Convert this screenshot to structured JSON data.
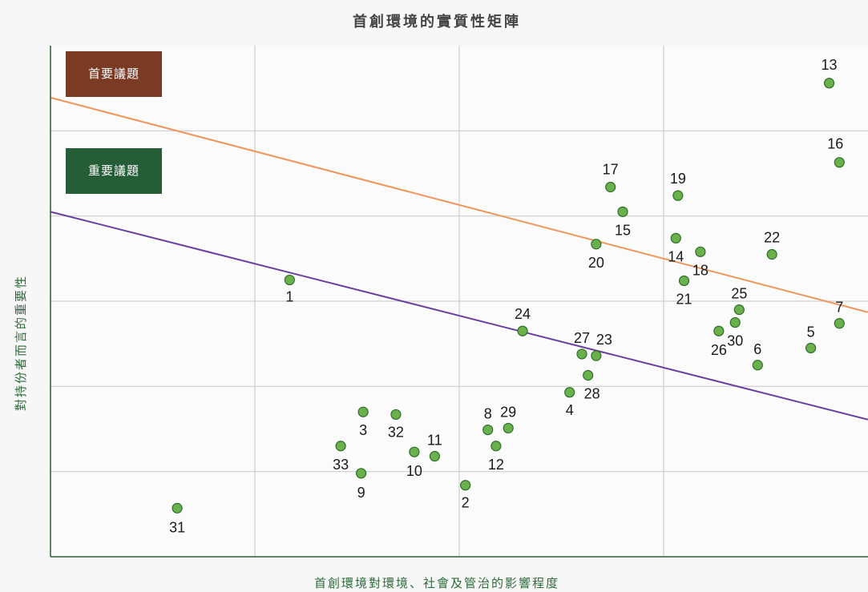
{
  "chart_data": {
    "type": "scatter",
    "title": "首創環境的實質性矩陣",
    "xlabel": "首創環境對環境、社會及管治的影響程度",
    "ylabel": "對持份者而言的重要性",
    "xlim": [
      0,
      4
    ],
    "ylim": [
      0,
      6
    ],
    "grid": true,
    "legend": [
      {
        "label": "首要議題",
        "color": "#7b3a24"
      },
      {
        "label": "重要議題",
        "color": "#245d36"
      }
    ],
    "threshold_lines": [
      {
        "legend_index": 0,
        "color": "#f0955a",
        "x": [
          0,
          4
        ],
        "y": [
          5.39,
          2.87
        ]
      },
      {
        "legend_index": 1,
        "color": "#6a3fa1",
        "x": [
          0,
          4
        ],
        "y": [
          4.05,
          1.61
        ]
      }
    ],
    "points": [
      {
        "label": "1",
        "x": 1.17,
        "y": 3.25
      },
      {
        "label": "2",
        "x": 2.03,
        "y": 0.84
      },
      {
        "label": "3",
        "x": 1.53,
        "y": 1.7
      },
      {
        "label": "4",
        "x": 2.54,
        "y": 1.93
      },
      {
        "label": "5",
        "x": 3.72,
        "y": 2.45
      },
      {
        "label": "6",
        "x": 3.46,
        "y": 2.25
      },
      {
        "label": "7",
        "x": 3.86,
        "y": 2.74
      },
      {
        "label": "8",
        "x": 2.14,
        "y": 1.49
      },
      {
        "label": "9",
        "x": 1.52,
        "y": 0.98
      },
      {
        "label": "10",
        "x": 1.78,
        "y": 1.23
      },
      {
        "label": "11",
        "x": 1.88,
        "y": 1.18
      },
      {
        "label": "12",
        "x": 2.18,
        "y": 1.3
      },
      {
        "label": "13",
        "x": 3.81,
        "y": 5.56
      },
      {
        "label": "14",
        "x": 3.06,
        "y": 3.74
      },
      {
        "label": "15",
        "x": 2.8,
        "y": 4.05
      },
      {
        "label": "16",
        "x": 3.86,
        "y": 4.63
      },
      {
        "label": "17",
        "x": 2.74,
        "y": 4.34
      },
      {
        "label": "18",
        "x": 3.18,
        "y": 3.58
      },
      {
        "label": "19",
        "x": 3.07,
        "y": 4.24
      },
      {
        "label": "20",
        "x": 2.67,
        "y": 3.67
      },
      {
        "label": "21",
        "x": 3.1,
        "y": 3.24
      },
      {
        "label": "22",
        "x": 3.53,
        "y": 3.55
      },
      {
        "label": "23",
        "x": 2.67,
        "y": 2.36
      },
      {
        "label": "24",
        "x": 2.31,
        "y": 2.65
      },
      {
        "label": "25",
        "x": 3.37,
        "y": 2.9
      },
      {
        "label": "26",
        "x": 3.27,
        "y": 2.65
      },
      {
        "label": "27",
        "x": 2.6,
        "y": 2.38
      },
      {
        "label": "28",
        "x": 2.63,
        "y": 2.13
      },
      {
        "label": "29",
        "x": 2.24,
        "y": 1.51
      },
      {
        "label": "30",
        "x": 3.35,
        "y": 2.75
      },
      {
        "label": "31",
        "x": 0.62,
        "y": 0.57
      },
      {
        "label": "32",
        "x": 1.69,
        "y": 1.67
      },
      {
        "label": "33",
        "x": 1.42,
        "y": 1.3
      }
    ]
  },
  "colors": {
    "point_fill": "#6ab04c",
    "point_stroke": "#2f6e2a",
    "axis_text": "#2e6b3a",
    "title_text": "#444444",
    "grid": "#cfcfcf",
    "axis_line": "#2e5a36"
  }
}
